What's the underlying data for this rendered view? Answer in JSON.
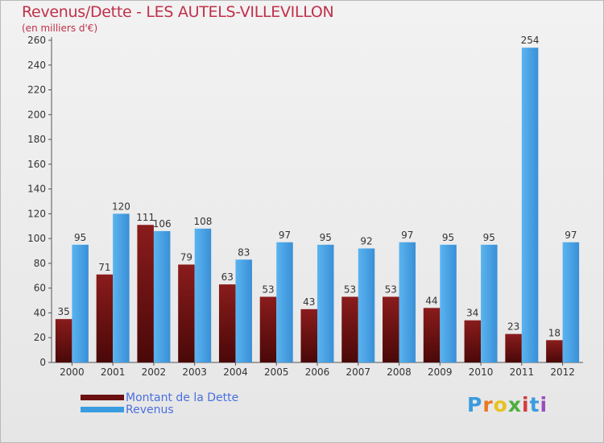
{
  "header": {
    "title": "Revenus/Dette - LES AUTELS-VILLEVILLON",
    "subtitle": "(en milliers d'€)"
  },
  "legend": {
    "items": [
      {
        "label": "Montant de la Dette",
        "color": "#6b0f10"
      },
      {
        "label": "Revenus",
        "color": "#3a9ce0"
      }
    ]
  },
  "logo": {
    "text": "Proxiti"
  },
  "chart_data": {
    "type": "bar",
    "title": "Revenus/Dette - LES AUTELS-VILLEVILLON",
    "subtitle": "(en milliers d'€)",
    "categories": [
      "2000",
      "2001",
      "2002",
      "2003",
      "2004",
      "2005",
      "2006",
      "2007",
      "2008",
      "2009",
      "2010",
      "2011",
      "2012"
    ],
    "series": [
      {
        "name": "Montant de la Dette",
        "color": "#7a1414",
        "values": [
          35,
          71,
          111,
          79,
          63,
          53,
          43,
          53,
          53,
          44,
          34,
          23,
          18
        ]
      },
      {
        "name": "Revenus",
        "color": "#4aa5e8",
        "values": [
          95,
          120,
          106,
          108,
          83,
          97,
          95,
          92,
          97,
          95,
          95,
          254,
          97
        ]
      }
    ],
    "ylim": [
      0,
      260
    ],
    "yticks": [
      0,
      20,
      40,
      60,
      80,
      100,
      120,
      140,
      160,
      180,
      200,
      220,
      240,
      260
    ],
    "grid": false,
    "legend_position": "bottom-left"
  }
}
